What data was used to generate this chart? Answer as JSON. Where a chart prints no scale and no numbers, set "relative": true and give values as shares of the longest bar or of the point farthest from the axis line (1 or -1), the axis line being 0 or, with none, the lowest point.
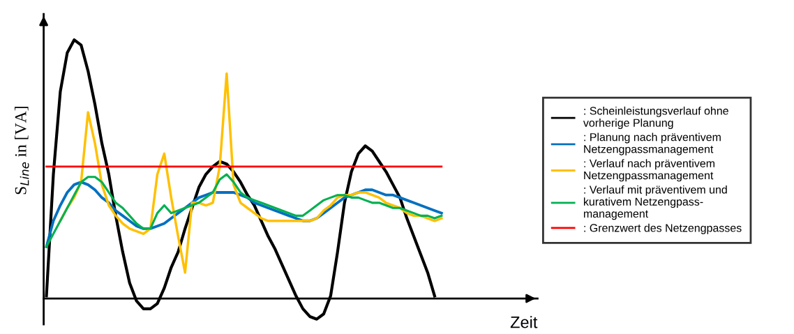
{
  "chart_data": {
    "type": "line",
    "relative": true,
    "xlabel": "Zeit",
    "ylabel": "S$_{Line}$ in [VA]",
    "legend": "right",
    "marker": "none",
    "line_style": "solid",
    "categories": [
      null,
      null,
      null,
      null,
      null,
      null,
      null,
      null,
      null,
      null,
      null,
      null,
      null,
      null,
      null,
      null,
      null,
      null,
      null,
      null,
      null,
      null,
      null,
      null,
      null,
      null,
      null,
      null,
      null,
      null,
      null,
      null,
      null,
      null,
      null,
      null,
      null,
      null,
      null,
      null,
      null,
      null,
      null,
      null,
      null,
      null,
      null,
      null,
      null,
      null,
      null,
      null,
      null,
      null,
      null,
      null,
      null,
      null
    ],
    "series": [
      {
        "name": ": Scheinleistungsverlauf ohne\nvorherige Planung",
        "color": "#000000",
        "values": [
          0.01,
          0.48,
          0.8,
          0.95,
          1.0,
          0.98,
          0.88,
          0.75,
          0.6,
          0.48,
          0.32,
          0.18,
          0.06,
          -0.01,
          -0.04,
          -0.04,
          -0.02,
          0.04,
          0.12,
          0.18,
          0.27,
          0.35,
          0.43,
          0.48,
          0.51,
          0.53,
          0.52,
          0.49,
          0.45,
          0.4,
          0.36,
          0.3,
          0.24,
          0.19,
          0.13,
          0.07,
          0.01,
          -0.04,
          -0.07,
          -0.08,
          -0.06,
          0.01,
          0.18,
          0.37,
          0.49,
          0.56,
          0.59,
          0.57,
          0.53,
          0.49,
          0.44,
          0.39,
          0.31,
          0.24,
          0.17,
          0.1,
          0.01,
          null
        ]
      },
      {
        "name": ": Planung nach präventivem\nNetzengpassmanagement",
        "color": "#0070c0",
        "values": [
          0.2,
          0.3,
          0.36,
          0.41,
          0.44,
          0.45,
          0.44,
          0.42,
          0.39,
          0.37,
          0.34,
          0.32,
          0.3,
          0.28,
          0.27,
          0.27,
          0.28,
          0.29,
          0.31,
          0.33,
          0.35,
          0.37,
          0.39,
          0.4,
          0.41,
          0.41,
          0.41,
          0.41,
          0.4,
          0.39,
          0.37,
          0.36,
          0.35,
          0.34,
          0.33,
          0.32,
          0.31,
          0.3,
          0.3,
          0.31,
          0.33,
          0.35,
          0.37,
          0.39,
          0.4,
          0.41,
          0.42,
          0.42,
          0.41,
          0.4,
          0.4,
          0.39,
          0.38,
          0.37,
          0.36,
          0.35,
          0.34,
          0.33
        ]
      },
      {
        "name": ": Verlauf nach präventivem\nNetzengpassmanagement",
        "color": "#ffc000",
        "values": [
          null,
          null,
          0.3,
          0.35,
          0.39,
          0.45,
          0.72,
          0.6,
          0.44,
          0.36,
          0.32,
          0.29,
          0.27,
          0.26,
          0.25,
          0.27,
          0.48,
          0.56,
          0.39,
          0.24,
          0.1,
          0.37,
          0.37,
          0.36,
          0.37,
          0.51,
          0.87,
          0.44,
          0.37,
          0.35,
          0.33,
          0.31,
          0.3,
          0.3,
          0.3,
          0.3,
          0.3,
          0.3,
          0.3,
          0.31,
          0.34,
          0.36,
          0.39,
          0.4,
          0.4,
          0.41,
          0.41,
          0.4,
          0.39,
          0.37,
          0.36,
          0.35,
          0.33,
          0.32,
          0.32,
          0.31,
          0.3,
          0.31
        ]
      },
      {
        "name": ": Verlauf mit präventivem und\nkurativem Netzengpass-\nmanagement",
        "color": "#00b050",
        "values": [
          0.2,
          0.25,
          0.3,
          0.35,
          0.4,
          0.45,
          0.47,
          0.47,
          0.45,
          0.41,
          0.37,
          0.35,
          0.32,
          0.29,
          0.27,
          0.27,
          0.33,
          0.36,
          0.33,
          0.34,
          0.35,
          0.36,
          0.37,
          0.39,
          0.41,
          0.46,
          0.48,
          0.45,
          0.41,
          0.39,
          0.38,
          0.37,
          0.36,
          0.35,
          0.34,
          0.33,
          0.32,
          0.32,
          0.34,
          0.36,
          0.38,
          0.39,
          0.4,
          0.4,
          0.39,
          0.39,
          0.38,
          0.37,
          0.37,
          0.36,
          0.35,
          0.35,
          0.34,
          0.33,
          0.32,
          0.32,
          0.31,
          0.32
        ]
      },
      {
        "name": ": Grenzwert des Netzengpasses",
        "color": "#ff0000",
        "values": [
          0.51,
          0.51,
          0.51,
          0.51,
          0.51,
          0.51,
          0.51,
          0.51,
          0.51,
          0.51,
          0.51,
          0.51,
          0.51,
          0.51,
          0.51,
          0.51,
          0.51,
          0.51,
          0.51,
          0.51,
          0.51,
          0.51,
          0.51,
          0.51,
          0.51,
          0.51,
          0.51,
          0.51,
          0.51,
          0.51,
          0.51,
          0.51,
          0.51,
          0.51,
          0.51,
          0.51,
          0.51,
          0.51,
          0.51,
          0.51,
          0.51,
          0.51,
          0.51,
          0.51,
          0.51,
          0.51,
          0.51,
          0.51,
          0.51,
          0.51,
          0.51,
          0.51,
          0.51,
          0.51,
          0.51,
          0.51,
          0.51,
          0.51
        ]
      }
    ]
  }
}
